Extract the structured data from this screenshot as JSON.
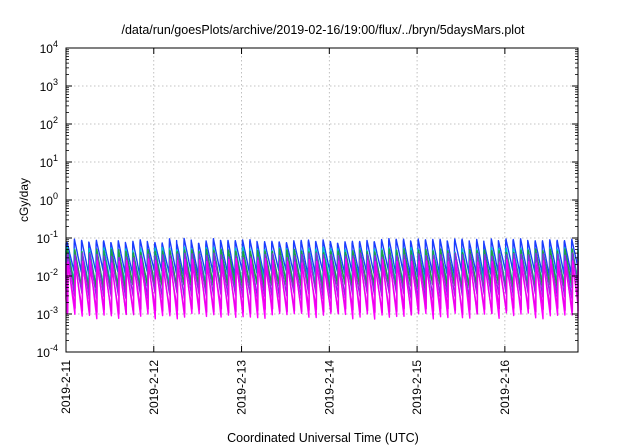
{
  "chart_data": {
    "type": "line",
    "title": "/data/run/goesPlots/archive/2019-02-16/19:00/flux/../bryn/5daysMars.plot",
    "xlabel": "Coordinated Universal Time (UTC)",
    "ylabel": "cGy/day",
    "yscale": "log",
    "ylim": [
      0.0001,
      10000
    ],
    "y_ticks": [
      {
        "base": "10",
        "exp": "4"
      },
      {
        "base": "10",
        "exp": "3"
      },
      {
        "base": "10",
        "exp": "2"
      },
      {
        "base": "10",
        "exp": "1"
      },
      {
        "base": "10",
        "exp": "0"
      },
      {
        "base": "10",
        "exp": "-1"
      },
      {
        "base": "10",
        "exp": "-2"
      },
      {
        "base": "10",
        "exp": "-3"
      },
      {
        "base": "10",
        "exp": "-4"
      }
    ],
    "x_ticks": [
      "2019-2-11",
      "2019-2-12",
      "2019-2-13",
      "2019-2-14",
      "2019-2-15",
      "2019-2-16"
    ],
    "xlim": [
      "2019-02-11T00:00",
      "2019-02-16T20:00"
    ],
    "grid": true,
    "cycle_hours": 2.0,
    "series": [
      {
        "color": "#1a3cff",
        "peak": 0.085,
        "trough": 0.012
      },
      {
        "color": "#00c8c8",
        "peak": 0.05,
        "trough": 0.006
      },
      {
        "color": "#20a040",
        "peak": 0.045,
        "trough": 0.005
      },
      {
        "color": "#8a2be2",
        "peak": 0.035,
        "trough": 0.003
      },
      {
        "color": "#ff00ff",
        "peak": 0.025,
        "trough": 0.0009
      },
      {
        "color": "#ee00ee",
        "peak": 0.018,
        "trough": 0.0012
      }
    ]
  }
}
